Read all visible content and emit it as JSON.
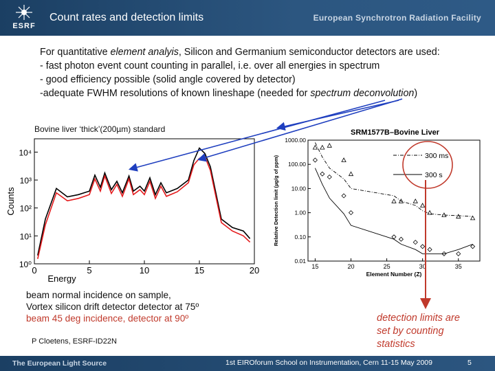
{
  "header": {
    "logo_text": "ESRF",
    "title": "Count rates and detection limits",
    "facility": "European Synchrotron Radiation Facility"
  },
  "intro": {
    "line1_pre": "For quantitative ",
    "line1_em": "element analyis",
    "line1_post": ", Silicon and Germanium semiconductor detectors are used:",
    "line2": "- fast photon event count counting in parallel, i.e. over all energies in spectrum",
    "line3": "- good efficiency possible  (solid angle covered by detector)",
    "line4_pre": "-adequate FWHM resolutions of known lineshape (needed for ",
    "line4_em": "spectrum deconvolution",
    "line4_post": ")"
  },
  "left_panel": {
    "label": "Bovine liver ‘thick’(200µm) standard"
  },
  "chart_data": [
    {
      "type": "line",
      "title": "",
      "xlabel": "Energy",
      "ylabel": "Counts",
      "xlim": [
        0,
        20
      ],
      "ylim": [
        1,
        30000
      ],
      "yscale": "log",
      "x_ticks": [
        "0",
        "5",
        "10",
        "15",
        "20"
      ],
      "y_ticks": [
        "10⁰",
        "10¹",
        "10²",
        "10³",
        "10⁴"
      ],
      "series": [
        {
          "color": "#000000",
          "x": [
            0.3,
            1,
            2,
            3,
            4,
            5,
            5.5,
            6,
            6.4,
            7,
            7.5,
            8,
            8.6,
            9,
            9.6,
            10,
            10.5,
            11,
            11.5,
            12,
            13,
            14,
            14.5,
            15,
            15.5,
            16,
            17,
            18,
            19,
            19.6
          ],
          "values": [
            2,
            40,
            500,
            250,
            300,
            400,
            1500,
            550,
            1800,
            450,
            900,
            350,
            1400,
            400,
            600,
            400,
            1200,
            300,
            800,
            350,
            500,
            1000,
            5000,
            14000,
            9000,
            3000,
            40,
            20,
            15,
            8
          ]
        },
        {
          "color": "#e41a1c",
          "x": [
            0.3,
            1,
            2,
            3,
            4,
            5,
            5.5,
            6,
            6.4,
            7,
            7.5,
            8,
            8.6,
            9,
            9.6,
            10,
            10.5,
            11,
            11.5,
            12,
            13,
            14,
            14.5,
            15,
            15.5,
            16,
            17,
            18,
            19,
            19.6
          ],
          "values": [
            1.5,
            25,
            350,
            180,
            220,
            300,
            1100,
            400,
            1400,
            330,
            700,
            260,
            1100,
            300,
            450,
            300,
            900,
            220,
            600,
            260,
            380,
            800,
            3500,
            6000,
            7000,
            2200,
            30,
            15,
            10,
            6
          ]
        }
      ]
    },
    {
      "type": "scatter",
      "title": "SRM1577B–Bovine Liver",
      "xlabel": "Element Number (Z)",
      "ylabel": "Relative Detection limit (µg/g of ppm)",
      "xlim": [
        14,
        38
      ],
      "ylim": [
        0.01,
        1000
      ],
      "yscale": "log",
      "x_ticks": [
        "15",
        "20",
        "25",
        "30",
        "35"
      ],
      "y_ticks": [
        "1000.00",
        "100.00",
        "10.00",
        "1.00",
        "0.10",
        "0.01"
      ],
      "series": [
        {
          "name": "300 ms",
          "marker": "triangle",
          "line": "dash-dot",
          "x": [
            15,
            16,
            17,
            19,
            20,
            26,
            27,
            29,
            30,
            31,
            33,
            35,
            37
          ],
          "values": [
            500,
            500,
            600,
            150,
            40,
            3,
            3,
            3,
            2,
            1,
            0.8,
            0.7,
            0.6
          ],
          "fit": [
            800,
            200,
            70,
            25,
            10,
            5,
            3,
            2,
            1.2,
            0.9,
            0.8,
            0.75,
            0.7
          ]
        },
        {
          "name": "300 s",
          "marker": "diamond",
          "line": "solid",
          "x": [
            15,
            16,
            17,
            19,
            20,
            26,
            27,
            29,
            30,
            31,
            33,
            35,
            37
          ],
          "values": [
            150,
            40,
            30,
            5,
            1,
            0.1,
            0.08,
            0.06,
            0.04,
            0.03,
            0.02,
            0.02,
            0.04
          ],
          "fit": [
            70,
            15,
            4,
            0.9,
            0.3,
            0.08,
            0.05,
            0.03,
            0.02,
            0.02,
            0.02,
            0.03,
            0.05
          ]
        }
      ]
    }
  ],
  "notes": {
    "line1": "beam normal incidence on sample,",
    "line2": "Vortex silicon drift detector detector at 75º",
    "line3": "beam 45 deg incidence, detector at 90º"
  },
  "credit": "P Cloetens, ESRF-ID22N",
  "callout": {
    "line1": "detection limits are",
    "line2": "set by counting",
    "line3": "statistics"
  },
  "footer": {
    "source": "The European Light Source",
    "event": "1st EIROforum School on Instrumentation, Cern 11-15 May 2009",
    "page": "5"
  },
  "colors": {
    "header": "#2c5680",
    "accent_red": "#c0392b",
    "arrow_blue": "#1f3fbf"
  }
}
